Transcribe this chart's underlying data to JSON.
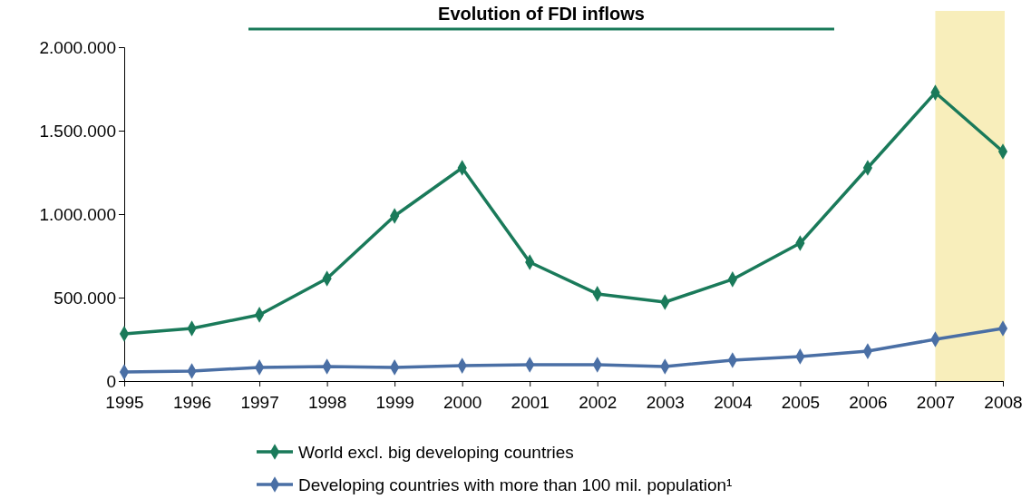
{
  "chart_data": {
    "type": "line",
    "title": "Evolution of FDI inflows",
    "x": [
      1995,
      1996,
      1997,
      1998,
      1999,
      2000,
      2001,
      2002,
      2003,
      2004,
      2005,
      2006,
      2007,
      2008
    ],
    "xlim": [
      1995,
      2008
    ],
    "xticks": [
      1995,
      1996,
      1997,
      1998,
      1999,
      2000,
      2001,
      2002,
      2003,
      2004,
      2005,
      2006,
      2007,
      2008
    ],
    "ylim": [
      0,
      2000000
    ],
    "yticks": [
      0,
      {
        "value": 500000,
        "label": "500.000"
      },
      {
        "value": 1000000,
        "label": "1.000.000"
      },
      {
        "value": 1500000,
        "label": "1.500.000"
      },
      {
        "value": 2000000,
        "label": "2.000.000"
      }
    ],
    "series": [
      {
        "name": "World excl. big developing countries",
        "color": "#1a7a5a",
        "values": [
          283000,
          315000,
          397000,
          614000,
          989000,
          1277000,
          712000,
          522000,
          473000,
          609000,
          826000,
          1277000,
          1728000,
          1375000
        ]
      },
      {
        "name": "Developing countries with more than 100 mil. population¹",
        "color": "#4a6fa5",
        "values": [
          54000,
          60000,
          82000,
          87000,
          82000,
          92000,
          98000,
          98000,
          87000,
          125000,
          147000,
          179000,
          250000,
          315000
        ]
      }
    ],
    "bands": [
      {
        "axis": "x",
        "from": 2007,
        "to": 2008,
        "color": "#f8eebb"
      }
    ],
    "marker": "diamond",
    "line_style": "solid",
    "grid": false,
    "legend": "bottom"
  }
}
